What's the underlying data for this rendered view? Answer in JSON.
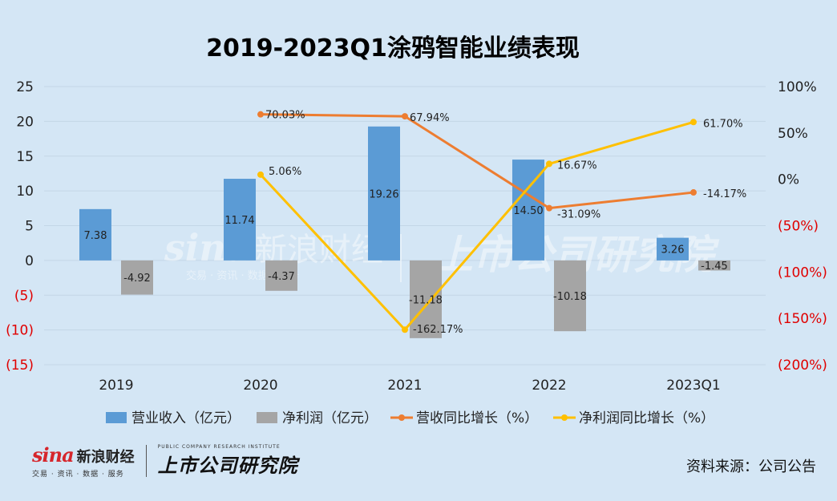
{
  "chart_data": {
    "type": "bar+line",
    "title": "2019-2023Q1涂鸦智能业绩表现",
    "categories": [
      "2019",
      "2020",
      "2021",
      "2022",
      "2023Q1"
    ],
    "left_axis": {
      "min": -15,
      "max": 25,
      "step": 5,
      "ticks": [
        "25",
        "20",
        "15",
        "10",
        "5",
        "0",
        "(5)",
        "(10)",
        "(15)"
      ]
    },
    "right_axis": {
      "min": -200,
      "max": 100,
      "step": 50,
      "ticks": [
        "100%",
        "50%",
        "0%",
        "(50%)",
        "(100%)",
        "(150%)",
        "(200%)"
      ]
    },
    "negative_tick_color": "#e00000",
    "bars": [
      {
        "name": "营业收入（亿元）",
        "color": "#5b9bd5",
        "values": [
          7.38,
          11.74,
          19.26,
          14.5,
          3.26
        ],
        "labels": [
          "7.38",
          "11.74",
          "19.26",
          "14.50",
          "3.26"
        ]
      },
      {
        "name": "净利润（亿元）",
        "color": "#a5a5a5",
        "values": [
          -4.92,
          -4.37,
          -11.18,
          -10.18,
          -1.45
        ],
        "labels": [
          "-4.92",
          "-4.37",
          "-11.18",
          "-10.18",
          "-1.45"
        ]
      }
    ],
    "lines": [
      {
        "name": "营收同比增长（%）",
        "color": "#ed7d31",
        "values": [
          null,
          70.03,
          67.94,
          -31.09,
          -14.17
        ],
        "labels": [
          "",
          "70.03%",
          "67.94%",
          "-31.09%",
          "-14.17%"
        ]
      },
      {
        "name": "净利润同比增长（%）",
        "color": "#ffc000",
        "values": [
          null,
          5.06,
          -162.17,
          16.67,
          61.7
        ],
        "labels": [
          "",
          "5.06%",
          "-162.17%",
          "16.67%",
          "61.70%"
        ]
      }
    ],
    "legend_position": "bottom",
    "grid": true
  },
  "watermark": {
    "brand": "sina",
    "brand_cn": "新浪财经",
    "sub": "交易 · 资讯 · 数据 · 服务",
    "institute_cn": "上市公司研究院"
  },
  "footer": {
    "sina_word": "sina",
    "sina_cn": "新浪财经",
    "sina_sub": "交易 · 资讯 · 数据 · 服务",
    "institute_en": "PUBLIC COMPANY RESEARCH INSTITUTE",
    "institute_cn": "上市公司研究院",
    "source": "资料来源：公司公告"
  }
}
